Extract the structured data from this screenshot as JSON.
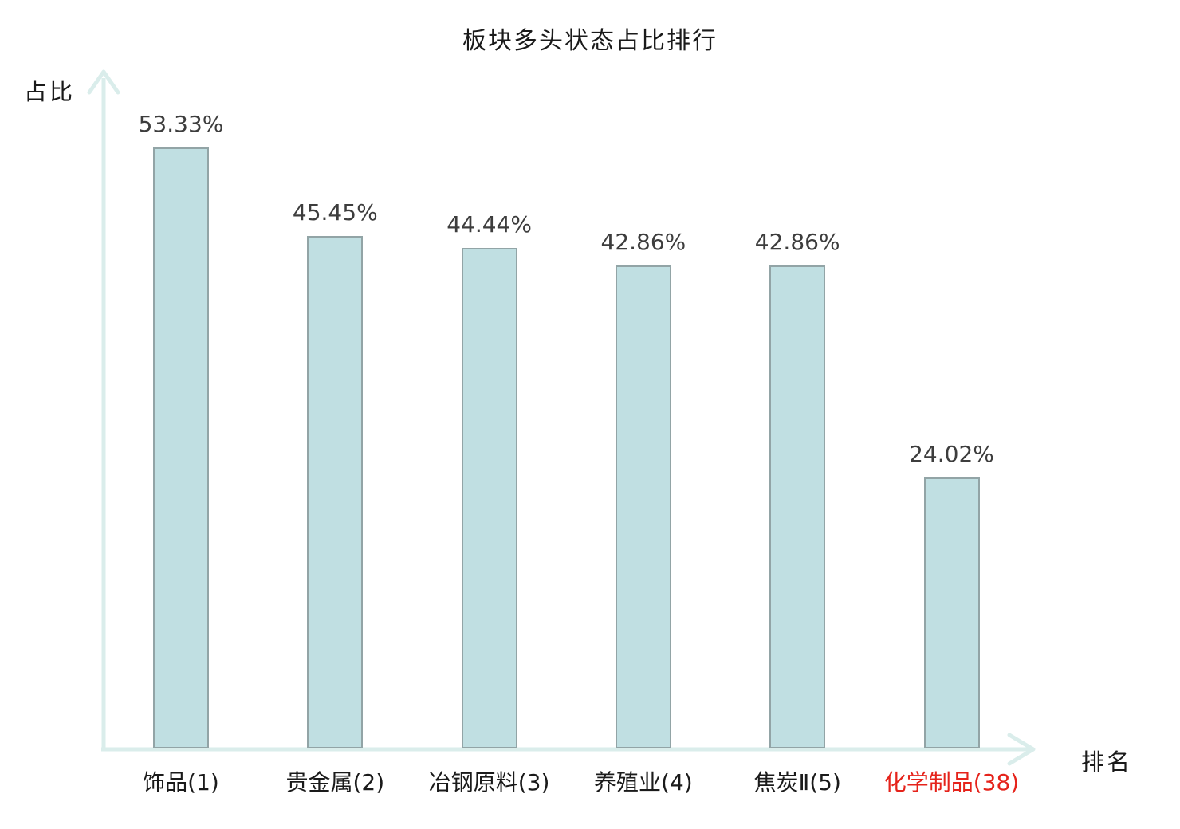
{
  "chart_data": {
    "type": "bar",
    "title": "板块多头状态占比排行",
    "xlabel": "排名",
    "ylabel": "占比",
    "categories": [
      "饰品(1)",
      "贵金属(2)",
      "冶钢原料(3)",
      "养殖业(4)",
      "焦炭Ⅱ(5)",
      "化学制品(38)"
    ],
    "values": [
      53.33,
      45.45,
      44.44,
      42.86,
      42.86,
      24.02
    ],
    "value_labels": [
      "53.33%",
      "45.45%",
      "44.44%",
      "42.86%",
      "42.86%",
      "24.02%"
    ],
    "highlighted_category_index": 5,
    "ylim": [
      0,
      60
    ],
    "grid": false,
    "legend": false
  },
  "colors": {
    "bar_fill": "#c0dfe2",
    "bar_border": "#92a4a6",
    "axis": "#daedeb",
    "value_label_text": "#3d3d3d",
    "category_text": "#1a1a1a",
    "highlight_text": "#e5231b"
  }
}
